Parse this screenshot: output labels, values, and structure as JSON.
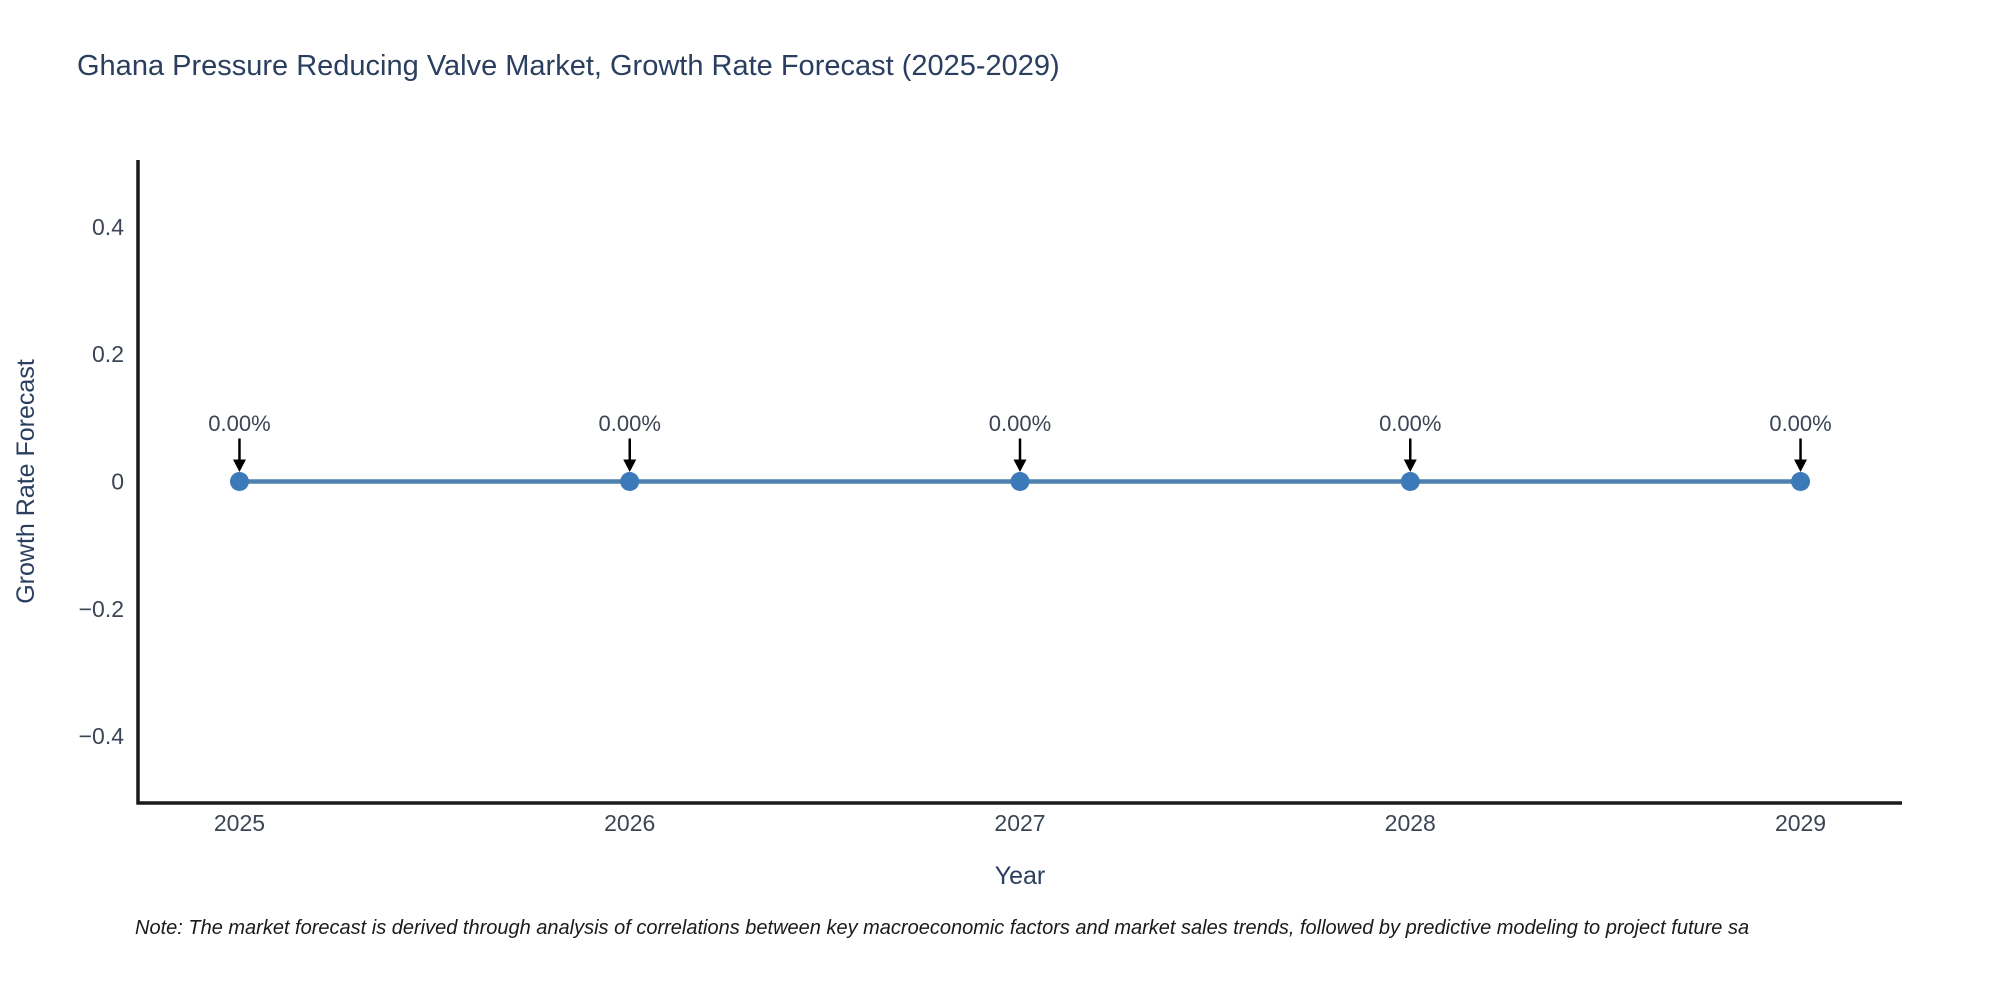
{
  "chart_data": {
    "type": "line",
    "title": "Ghana Pressure Reducing Valve Market, Growth Rate Forecast (2025-2029)",
    "xlabel": "Year",
    "ylabel": "Growth Rate Forecast",
    "x": [
      2025,
      2026,
      2027,
      2028,
      2029
    ],
    "series": [
      {
        "name": "Growth Rate Forecast",
        "values": [
          0,
          0,
          0,
          0,
          0
        ]
      }
    ],
    "point_labels": [
      "0.00%",
      "0.00%",
      "0.00%",
      "0.00%",
      "0.00%"
    ],
    "xticks": {
      "values": [
        2025,
        2026,
        2027,
        2028,
        2029
      ],
      "labels": [
        "2025",
        "2026",
        "2027",
        "2028",
        "2029"
      ]
    },
    "yticks": {
      "values": [
        0.4,
        0.2,
        0,
        -0.2,
        -0.4
      ],
      "labels": [
        "0.4",
        "0.2",
        "0",
        "−0.2",
        "−0.4"
      ]
    },
    "xlim": [
      2024.74,
      2029.26
    ],
    "ylim": [
      -0.505,
      0.505
    ],
    "grid": false,
    "legend": "none",
    "colors": {
      "line": "#4f81ae",
      "marker": "#3c79b8",
      "axis": "#1a1a1a",
      "title_text": "#2a3f5f",
      "axis_label_text": "#2a3f5f",
      "tick_text": "#3b4555",
      "annotation_text": "#3b4555",
      "arrow": "#000000"
    }
  },
  "footnote": "Note: The market forecast is derived through analysis of correlations between key macroeconomic factors and market sales trends, followed by predictive modeling to project future sa"
}
